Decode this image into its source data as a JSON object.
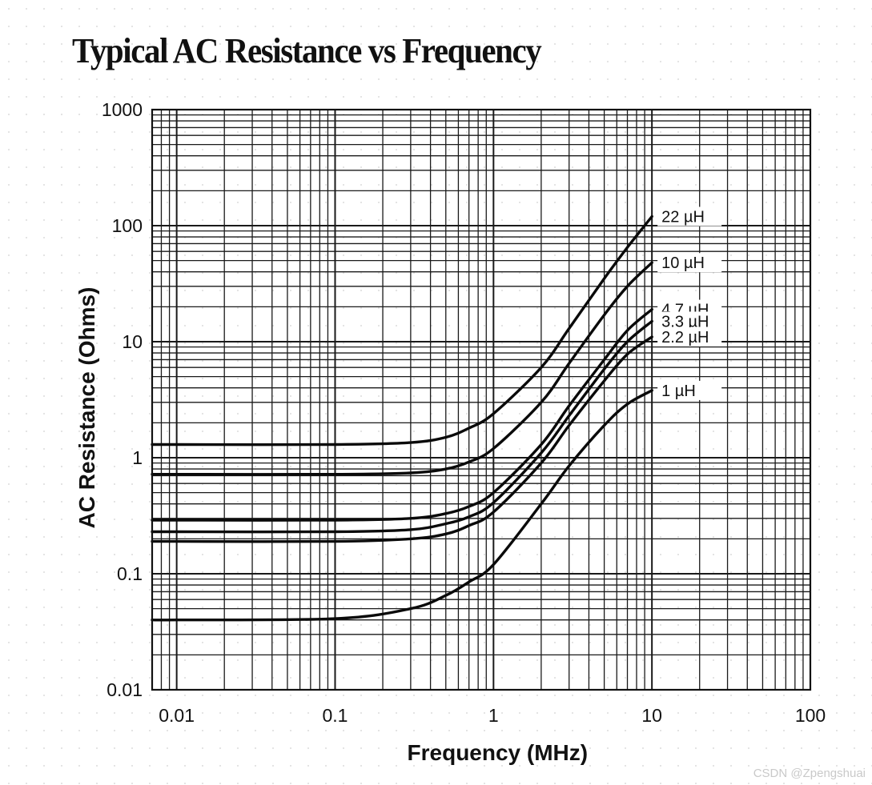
{
  "chart_data": {
    "type": "line",
    "title": "Typical AC Resistance vs Frequency",
    "xlabel": "Frequency (MHz)",
    "ylabel": "AC Resistance (Ohms)",
    "xscale": "log",
    "yscale": "log",
    "xlim": [
      0.007,
      100
    ],
    "ylim": [
      0.01,
      1000
    ],
    "xticks": [
      0.01,
      0.1,
      1,
      10,
      100
    ],
    "xtick_labels": [
      "0.01",
      "0.1",
      "1",
      "10",
      "100"
    ],
    "yticks": [
      0.01,
      0.1,
      1,
      10,
      100,
      1000
    ],
    "ytick_labels": [
      "0.01",
      "0.1",
      "1",
      "10",
      "100",
      "1000"
    ],
    "grid": true,
    "series": [
      {
        "name": "22 µH",
        "x": [
          0.007,
          0.01,
          0.1,
          0.3,
          0.5,
          0.7,
          1,
          2,
          3,
          5,
          7,
          10
        ],
        "y": [
          1.3,
          1.3,
          1.3,
          1.35,
          1.5,
          1.8,
          2.4,
          6,
          13,
          35,
          65,
          120
        ]
      },
      {
        "name": "10 µH",
        "x": [
          0.007,
          0.01,
          0.1,
          0.3,
          0.5,
          0.7,
          1,
          2,
          3,
          5,
          7,
          10
        ],
        "y": [
          0.72,
          0.72,
          0.72,
          0.74,
          0.8,
          0.92,
          1.2,
          3,
          6.5,
          17,
          30,
          48
        ]
      },
      {
        "name": "4.7 µH",
        "x": [
          0.007,
          0.01,
          0.1,
          0.3,
          0.5,
          0.7,
          1,
          2,
          3,
          5,
          7,
          10
        ],
        "y": [
          0.29,
          0.29,
          0.29,
          0.3,
          0.33,
          0.38,
          0.5,
          1.3,
          2.8,
          7,
          12.5,
          19
        ]
      },
      {
        "name": "3.3 µH",
        "x": [
          0.007,
          0.01,
          0.1,
          0.3,
          0.5,
          0.7,
          1,
          2,
          3,
          5,
          7,
          10
        ],
        "y": [
          0.23,
          0.23,
          0.23,
          0.24,
          0.27,
          0.31,
          0.41,
          1.1,
          2.3,
          5.8,
          10,
          15
        ]
      },
      {
        "name": "2.2 µH",
        "x": [
          0.007,
          0.01,
          0.1,
          0.3,
          0.5,
          0.7,
          1,
          2,
          3,
          5,
          7,
          10
        ],
        "y": [
          0.19,
          0.19,
          0.19,
          0.2,
          0.22,
          0.26,
          0.34,
          0.9,
          1.9,
          4.6,
          7.8,
          11
        ]
      },
      {
        "name": "1 µH",
        "x": [
          0.007,
          0.01,
          0.1,
          0.3,
          0.5,
          0.7,
          1,
          2,
          3,
          5,
          7,
          10
        ],
        "y": [
          0.04,
          0.04,
          0.041,
          0.05,
          0.065,
          0.085,
          0.12,
          0.4,
          0.85,
          1.9,
          2.9,
          3.8
        ]
      }
    ]
  },
  "watermark": "CSDN @Zpengshuai"
}
